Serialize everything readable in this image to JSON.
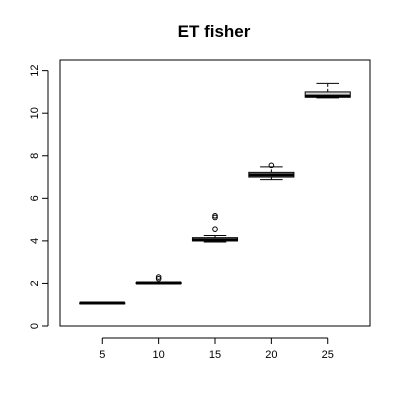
{
  "chart_data": {
    "type": "box",
    "title": "ET fisher",
    "xlabel": "",
    "ylabel": "",
    "categories": [
      "5",
      "10",
      "15",
      "20",
      "25"
    ],
    "y_ticks": [
      "0",
      "2",
      "4",
      "6",
      "8",
      "10",
      "12"
    ],
    "ylim": [
      0,
      12.5
    ],
    "grid": false,
    "boxes": [
      {
        "category": "5",
        "min": 1.05,
        "q1": 1.07,
        "median": 1.08,
        "q3": 1.09,
        "max": 1.1,
        "outliers": []
      },
      {
        "category": "10",
        "min": 1.98,
        "q1": 2.0,
        "median": 2.02,
        "q3": 2.04,
        "max": 2.06,
        "outliers": [
          2.22,
          2.3
        ]
      },
      {
        "category": "15",
        "min": 3.95,
        "q1": 4.0,
        "median": 4.05,
        "q3": 4.15,
        "max": 4.25,
        "outliers": [
          4.55,
          5.1,
          5.18
        ]
      },
      {
        "category": "20",
        "min": 6.88,
        "q1": 7.0,
        "median": 7.1,
        "q3": 7.22,
        "max": 7.48,
        "outliers": [
          7.55
        ]
      },
      {
        "category": "25",
        "min": 10.72,
        "q1": 10.75,
        "median": 10.8,
        "q3": 11.0,
        "max": 11.4,
        "outliers": []
      }
    ],
    "box_fill": "#d3d3d3",
    "line_color": "#000000"
  }
}
